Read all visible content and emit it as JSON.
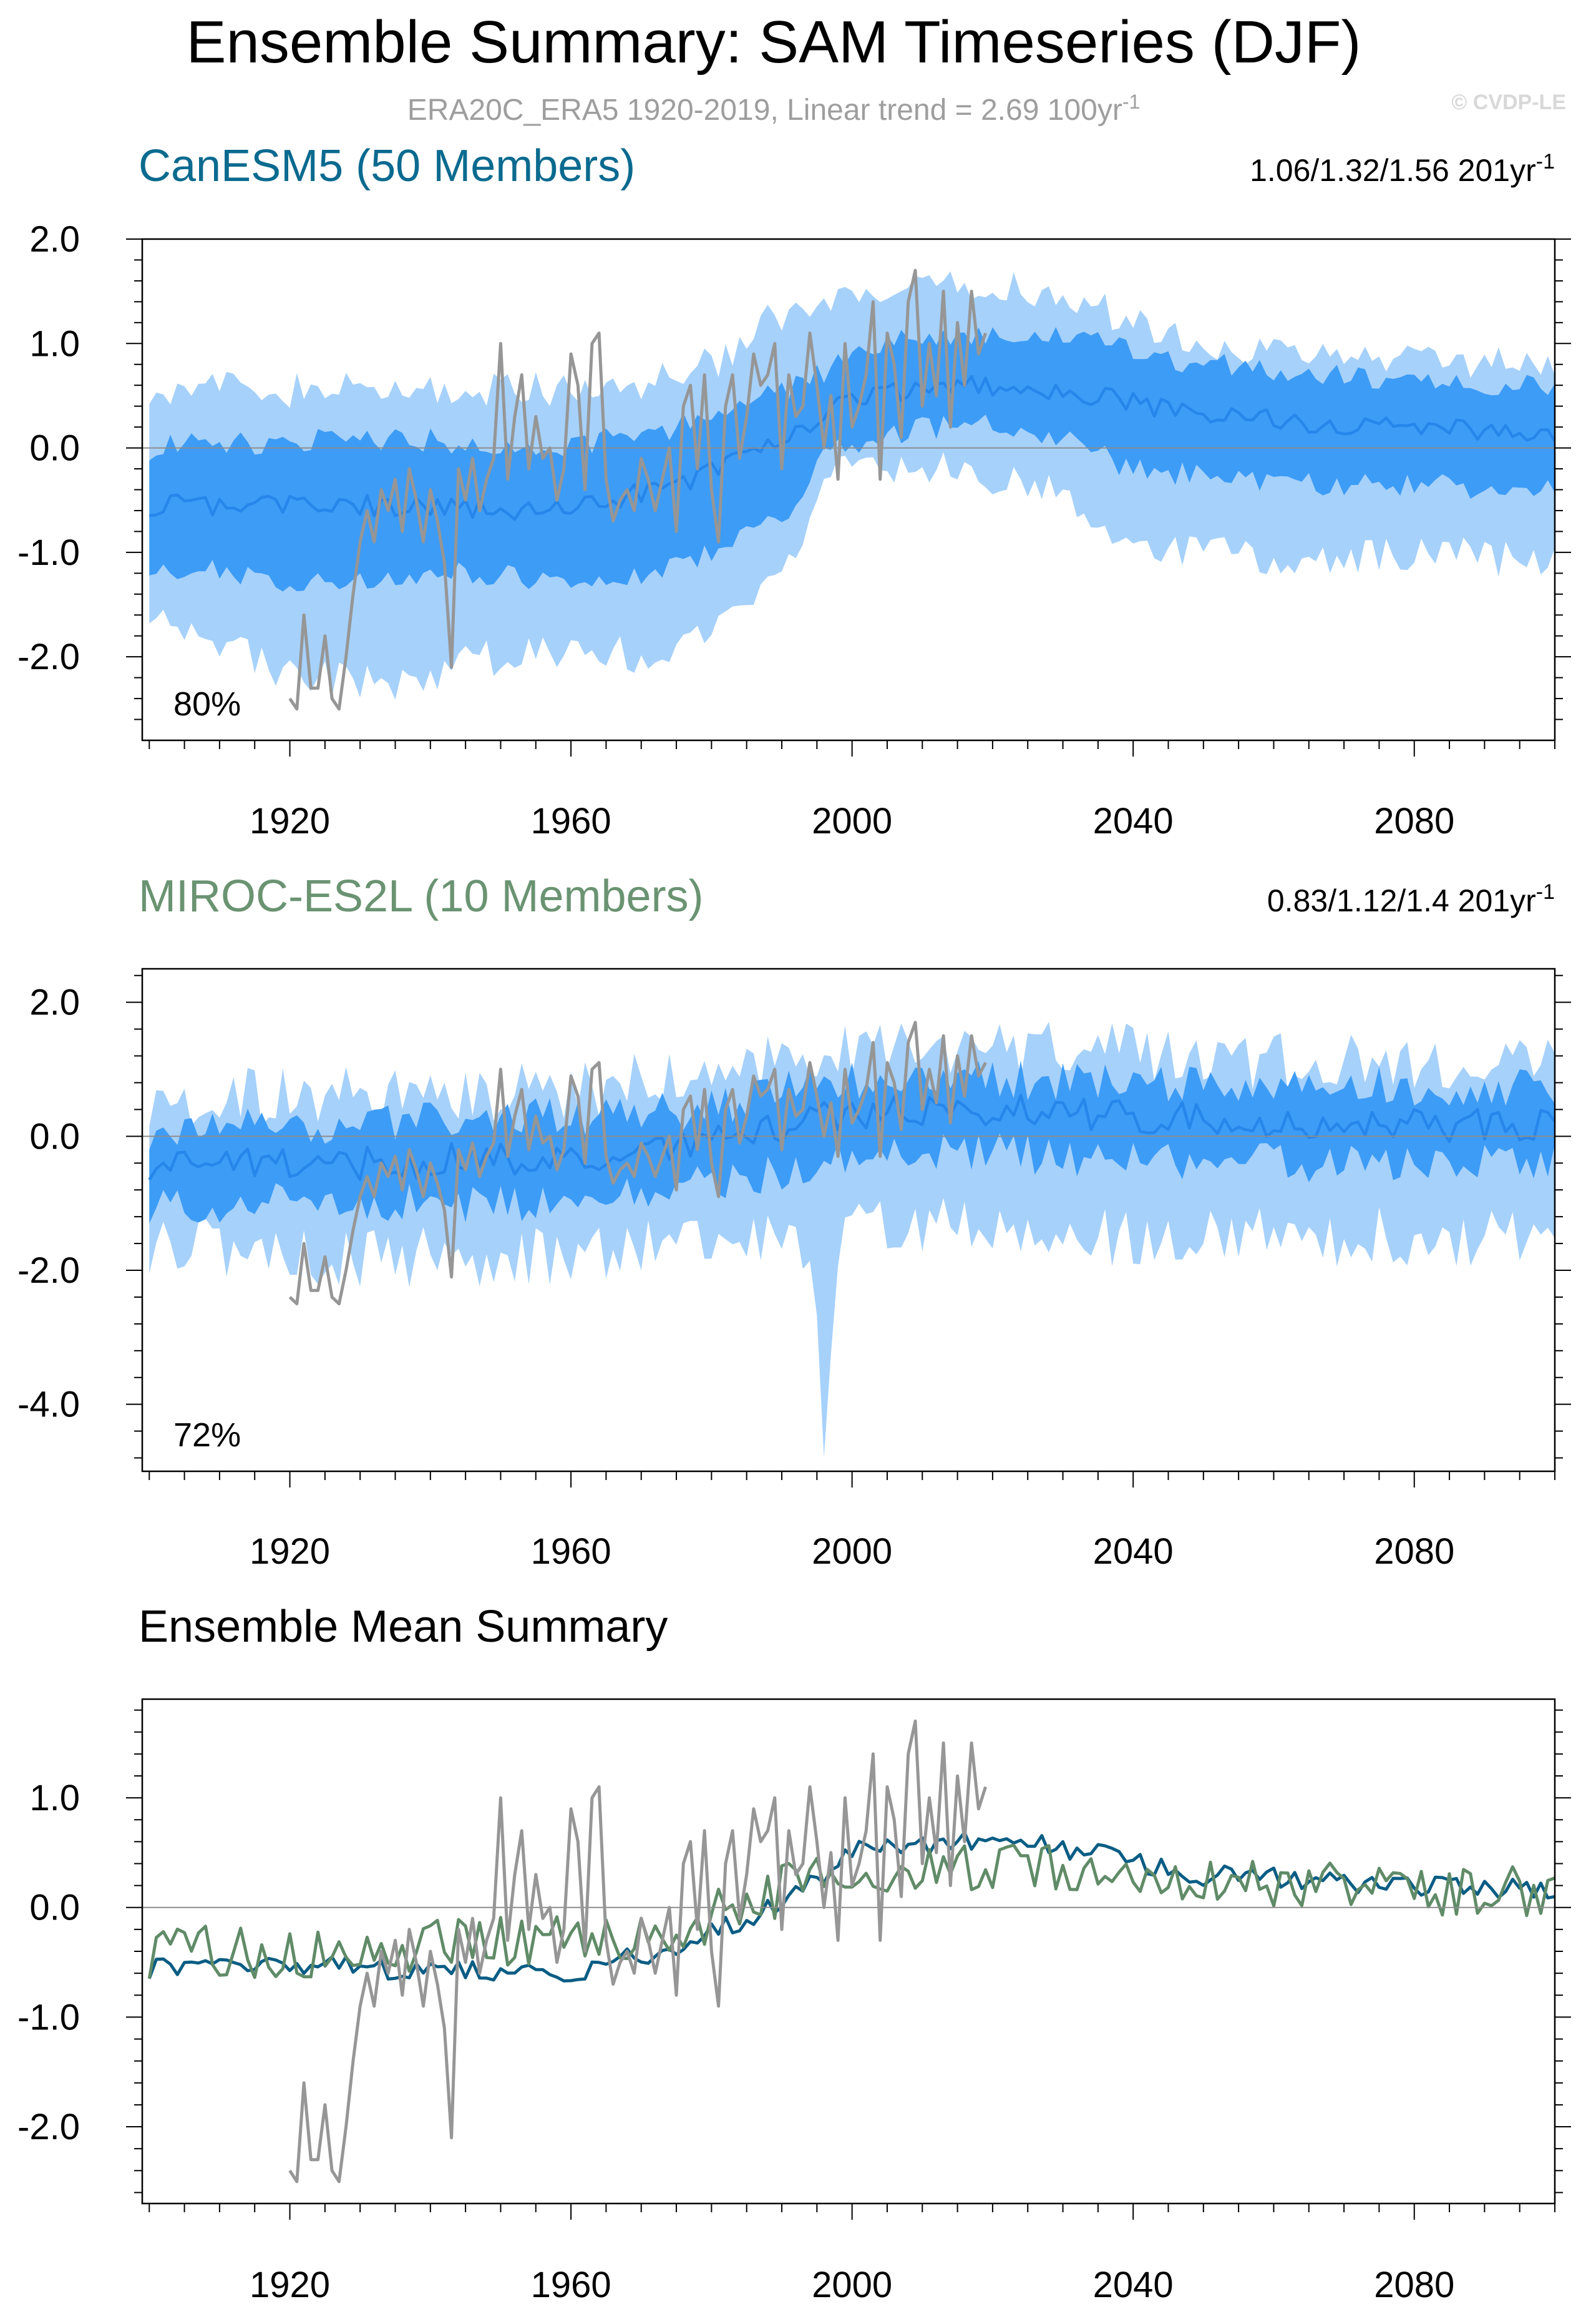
{
  "header": {
    "title": "Ensemble Summary: SAM Timeseries (DJF)",
    "subtitle_main": "ERA20C_ERA5 1920-2019, Linear trend = 2.69 100yr",
    "subtitle_exp": "-1",
    "watermark": "© CVDP-LE"
  },
  "colors": {
    "band_outer": "#a6d1fb",
    "band_inner": "#3d9cf6",
    "member_mean": "#2686ea",
    "observations": "#969696",
    "canesm5_mean": "#0a5d84",
    "miroc_mean": "#608b68",
    "canesm5_title": "#0b6a8f",
    "miroc_title": "#6a9372",
    "zero_line": "#8c8c8c",
    "watermark": "#d8d8d8",
    "subtitle": "#9e9e9e"
  },
  "chart_data": [
    {
      "type": "area",
      "title": "CanESM5 (50 Members)",
      "trend_text": "1.06/1.32/1.56 201yr",
      "trend_exp": "-1",
      "coverage_label": "80%",
      "xlim": [
        1899,
        2100
      ],
      "ylim": [
        -2.8,
        2.0
      ],
      "x_ticks": [
        "1920",
        "1960",
        "2000",
        "2040",
        "2080"
      ],
      "y_ticks": [
        "2.0",
        "1.0",
        "0.0",
        "-1.0",
        "-2.0"
      ],
      "series": [
        {
          "name": "ensemble 10-90% range (outer band)",
          "x_start": 1900,
          "x_end": 2100,
          "upper_nodes": [
            [
              1900,
              0.6
            ],
            [
              1920,
              0.55
            ],
            [
              1945,
              0.55
            ],
            [
              1965,
              0.55
            ],
            [
              1980,
              0.8
            ],
            [
              1988,
              1.2
            ],
            [
              2000,
              1.4
            ],
            [
              2010,
              1.5
            ],
            [
              2025,
              1.55
            ],
            [
              2045,
              1.1
            ],
            [
              2060,
              0.9
            ],
            [
              2080,
              0.85
            ],
            [
              2100,
              0.85
            ]
          ],
          "lower_nodes": [
            [
              1900,
              -1.5
            ],
            [
              1920,
              -2.2
            ],
            [
              1935,
              -2.25
            ],
            [
              1955,
              -1.9
            ],
            [
              1970,
              -2.0
            ],
            [
              1980,
              -1.8
            ],
            [
              1990,
              -1.3
            ],
            [
              1997,
              -0.2
            ],
            [
              2010,
              -0.2
            ],
            [
              2025,
              -0.3
            ],
            [
              2040,
              -0.9
            ],
            [
              2060,
              -1.1
            ],
            [
              2080,
              -1.0
            ],
            [
              2100,
              -1.1
            ]
          ],
          "noise": 0.18
        },
        {
          "name": "ensemble 25-75% range (inner band)",
          "x_start": 1900,
          "x_end": 2100,
          "upper_nodes": [
            [
              1900,
              0.0
            ],
            [
              1930,
              0.1
            ],
            [
              1960,
              0.0
            ],
            [
              1975,
              0.2
            ],
            [
              1985,
              0.4
            ],
            [
              1995,
              0.7
            ],
            [
              2005,
              1.05
            ],
            [
              2020,
              1.1
            ],
            [
              2035,
              1.0
            ],
            [
              2050,
              0.8
            ],
            [
              2080,
              0.65
            ],
            [
              2100,
              0.6
            ]
          ],
          "lower_nodes": [
            [
              1900,
              -1.1
            ],
            [
              1920,
              -1.3
            ],
            [
              1945,
              -1.2
            ],
            [
              1965,
              -1.3
            ],
            [
              1980,
              -1.0
            ],
            [
              1990,
              -0.7
            ],
            [
              1997,
              0.0
            ],
            [
              2010,
              0.2
            ],
            [
              2025,
              0.2
            ],
            [
              2040,
              -0.2
            ],
            [
              2060,
              -0.35
            ],
            [
              2080,
              -0.35
            ],
            [
              2100,
              -0.4
            ]
          ],
          "noise": 0.12
        },
        {
          "name": "ensemble mean",
          "x_start": 1900,
          "x_end": 2100,
          "nodes": [
            [
              1900,
              -0.55
            ],
            [
              1930,
              -0.55
            ],
            [
              1960,
              -0.6
            ],
            [
              1978,
              -0.3
            ],
            [
              1990,
              0.05
            ],
            [
              2000,
              0.5
            ],
            [
              2015,
              0.6
            ],
            [
              2030,
              0.55
            ],
            [
              2050,
              0.3
            ],
            [
              2080,
              0.2
            ],
            [
              2100,
              0.15
            ]
          ],
          "noise": 0.1
        }
      ]
    },
    {
      "type": "area",
      "title": "MIROC-ES2L (10 Members)",
      "trend_text": "0.83/1.12/1.4 201yr",
      "trend_exp": "-1",
      "coverage_label": "72%",
      "xlim": [
        1899,
        2100
      ],
      "ylim": [
        -5.0,
        2.5
      ],
      "x_ticks": [
        "1920",
        "1960",
        "2000",
        "2040",
        "2080"
      ],
      "y_ticks": [
        "2.0",
        "0.0",
        "-2.0",
        "-4.0"
      ],
      "series": [
        {
          "name": "ensemble 10-90% range (outer band)",
          "x_start": 1900,
          "x_end": 2100,
          "upper_nodes": [
            [
              1900,
              0.6
            ],
            [
              1930,
              0.6
            ],
            [
              1960,
              0.7
            ],
            [
              1980,
              0.9
            ],
            [
              1995,
              1.3
            ],
            [
              2010,
              1.3
            ],
            [
              2030,
              1.3
            ],
            [
              2060,
              1.1
            ],
            [
              2100,
              1.1
            ]
          ],
          "lower_nodes": [
            [
              1900,
              -1.6
            ],
            [
              1930,
              -1.8
            ],
            [
              1960,
              -1.8
            ],
            [
              1980,
              -1.5
            ],
            [
              1994,
              -1.6
            ],
            [
              1996,
              -4.6
            ],
            [
              1998,
              -1.5
            ],
            [
              2010,
              -1.3
            ],
            [
              2030,
              -1.5
            ],
            [
              2060,
              -1.5
            ],
            [
              2100,
              -1.5
            ]
          ],
          "noise": 0.45
        },
        {
          "name": "ensemble 25-75% range (inner band)",
          "x_start": 1900,
          "x_end": 2100,
          "upper_nodes": [
            [
              1900,
              0.1
            ],
            [
              1930,
              0.2
            ],
            [
              1960,
              0.3
            ],
            [
              1980,
              0.4
            ],
            [
              1995,
              0.8
            ],
            [
              2010,
              0.9
            ],
            [
              2030,
              0.8
            ],
            [
              2060,
              0.8
            ],
            [
              2100,
              0.7
            ]
          ],
          "lower_nodes": [
            [
              1900,
              -1.0
            ],
            [
              1930,
              -1.0
            ],
            [
              1960,
              -1.0
            ],
            [
              1980,
              -0.7
            ],
            [
              1995,
              -0.4
            ],
            [
              2010,
              -0.2
            ],
            [
              2030,
              -0.3
            ],
            [
              2060,
              -0.4
            ],
            [
              2100,
              -0.4
            ]
          ],
          "noise": 0.3
        },
        {
          "name": "ensemble mean",
          "x_start": 1900,
          "x_end": 2100,
          "nodes": [
            [
              1900,
              -0.4
            ],
            [
              1930,
              -0.4
            ],
            [
              1960,
              -0.3
            ],
            [
              1980,
              -0.1
            ],
            [
              1995,
              0.3
            ],
            [
              2010,
              0.4
            ],
            [
              2030,
              0.35
            ],
            [
              2060,
              0.2
            ],
            [
              2100,
              0.15
            ]
          ],
          "noise": 0.25
        }
      ]
    },
    {
      "type": "line",
      "title": "Ensemble Mean Summary",
      "xlim": [
        1899,
        2100
      ],
      "ylim": [
        -2.7,
        1.9
      ],
      "x_ticks": [
        "1920",
        "1960",
        "2000",
        "2040",
        "2080"
      ],
      "y_ticks": [
        "1.0",
        "0.0",
        "-1.0",
        "-2.0"
      ],
      "series": [
        {
          "name": "CanESM5 ensemble mean",
          "x_start": 1900,
          "x_end": 2100,
          "nodes": [
            [
              1900,
              -0.55
            ],
            [
              1930,
              -0.55
            ],
            [
              1960,
              -0.6
            ],
            [
              1978,
              -0.3
            ],
            [
              1990,
              0.05
            ],
            [
              2000,
              0.5
            ],
            [
              2015,
              0.6
            ],
            [
              2030,
              0.55
            ],
            [
              2050,
              0.3
            ],
            [
              2080,
              0.2
            ],
            [
              2100,
              0.15
            ]
          ],
          "noise": 0.1
        },
        {
          "name": "MIROC-ES2L ensemble mean",
          "x_start": 1900,
          "x_end": 2100,
          "nodes": [
            [
              1900,
              -0.4
            ],
            [
              1930,
              -0.4
            ],
            [
              1960,
              -0.3
            ],
            [
              1980,
              -0.1
            ],
            [
              1995,
              0.3
            ],
            [
              2010,
              0.4
            ],
            [
              2030,
              0.35
            ],
            [
              2060,
              0.2
            ],
            [
              2100,
              0.15
            ]
          ],
          "noise": 0.25
        }
      ]
    }
  ],
  "observations": {
    "name": "ERA20C_ERA5 observations",
    "x_start": 1920,
    "values": [
      -2.4,
      -2.5,
      -1.6,
      -2.3,
      -2.3,
      -1.8,
      -2.4,
      -2.5,
      -2.0,
      -1.4,
      -0.9,
      -0.6,
      -0.9,
      -0.4,
      -0.6,
      -0.3,
      -0.8,
      -0.2,
      -0.5,
      -0.9,
      -0.4,
      -0.7,
      -1.1,
      -2.1,
      -0.2,
      -0.5,
      -0.1,
      -0.6,
      -0.3,
      -0.1,
      1.0,
      -0.3,
      0.3,
      0.7,
      -0.2,
      0.3,
      -0.1,
      0.0,
      -0.5,
      -0.2,
      0.9,
      0.6,
      -0.4,
      1.0,
      1.1,
      -0.3,
      -0.7,
      -0.5,
      -0.4,
      -0.6,
      -0.1,
      -0.3,
      -0.6,
      -0.3,
      0.0,
      -0.8,
      0.4,
      0.6,
      -0.2,
      0.7,
      -0.4,
      -0.9,
      0.4,
      0.7,
      -0.1,
      0.3,
      0.9,
      0.6,
      0.7,
      1.0,
      -0.2,
      0.7,
      0.3,
      0.4,
      1.1,
      0.6,
      0.0,
      0.5,
      -0.3,
      1.0,
      0.2,
      0.4,
      0.7,
      1.4,
      -0.3,
      1.1,
      0.8,
      0.1,
      1.4,
      1.7,
      0.4,
      1.0,
      0.5,
      1.5,
      0.2,
      1.2,
      0.6,
      1.5,
      0.9,
      1.1
    ]
  }
}
